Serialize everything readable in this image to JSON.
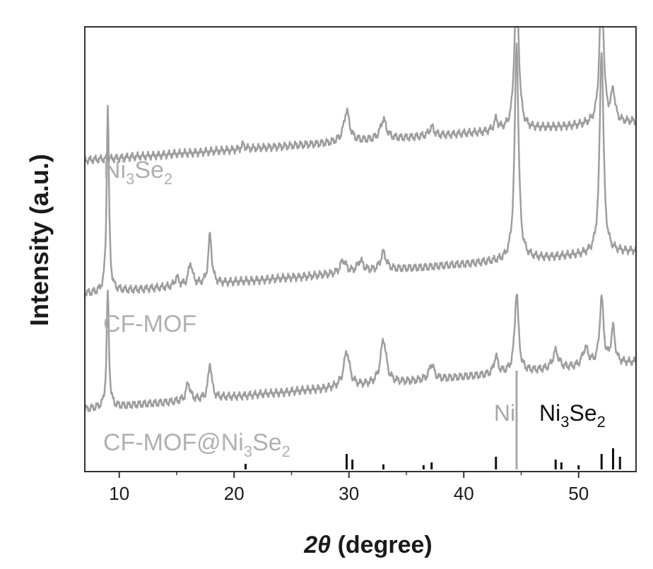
{
  "chart_data": {
    "type": "line",
    "title": "",
    "xlabel_prefix": "2θ",
    "xlabel_suffix": " (degree)",
    "ylabel": "Intensity (a.u.)",
    "xlim": [
      7,
      55
    ],
    "xticks": [
      10,
      20,
      30,
      40,
      50
    ],
    "xtick_labels": [
      "10",
      "20",
      "30",
      "40",
      "50"
    ],
    "y_ticks_shown": false,
    "series": [
      {
        "label_parts": [
          "Ni",
          "3",
          "Se",
          "2"
        ],
        "color": "#9e9e9e",
        "baseline": 0.7,
        "slope": 0.0018,
        "peaks": [
          {
            "x": 20.8,
            "h": 0.01,
            "w": 0.2
          },
          {
            "x": 29.8,
            "h": 0.07,
            "w": 0.3
          },
          {
            "x": 33.0,
            "h": 0.045,
            "w": 0.3
          },
          {
            "x": 37.2,
            "h": 0.02,
            "w": 0.25
          },
          {
            "x": 42.8,
            "h": 0.025,
            "w": 0.2
          },
          {
            "x": 44.6,
            "h": 0.38,
            "w": 0.2
          },
          {
            "x": 52.0,
            "h": 0.34,
            "w": 0.2
          },
          {
            "x": 53.0,
            "h": 0.07,
            "w": 0.2
          }
        ]
      },
      {
        "label_parts": [
          "CF-MOF"
        ],
        "color": "#9e9e9e",
        "baseline": 0.4,
        "slope": 0.002,
        "peaks": [
          {
            "x": 9.0,
            "h": 0.42,
            "w": 0.12
          },
          {
            "x": 15.0,
            "h": 0.02,
            "w": 0.2
          },
          {
            "x": 16.2,
            "h": 0.05,
            "w": 0.2
          },
          {
            "x": 17.9,
            "h": 0.11,
            "w": 0.18
          },
          {
            "x": 29.5,
            "h": 0.03,
            "w": 0.3
          },
          {
            "x": 31.0,
            "h": 0.025,
            "w": 0.3
          },
          {
            "x": 33.0,
            "h": 0.04,
            "w": 0.3
          },
          {
            "x": 44.6,
            "h": 0.49,
            "w": 0.2
          },
          {
            "x": 52.0,
            "h": 0.46,
            "w": 0.2
          }
        ]
      },
      {
        "label_parts": [
          "CF-MOF@Ni",
          "3",
          "Se",
          "2"
        ],
        "color": "#9e9e9e",
        "baseline": 0.14,
        "slope": 0.0022,
        "peaks": [
          {
            "x": 9.0,
            "h": 0.26,
            "w": 0.12
          },
          {
            "x": 16.0,
            "h": 0.04,
            "w": 0.2
          },
          {
            "x": 17.9,
            "h": 0.08,
            "w": 0.18
          },
          {
            "x": 29.8,
            "h": 0.08,
            "w": 0.3
          },
          {
            "x": 33.0,
            "h": 0.1,
            "w": 0.3
          },
          {
            "x": 37.2,
            "h": 0.035,
            "w": 0.25
          },
          {
            "x": 42.8,
            "h": 0.04,
            "w": 0.2
          },
          {
            "x": 44.6,
            "h": 0.18,
            "w": 0.2
          },
          {
            "x": 48.0,
            "h": 0.04,
            "w": 0.3
          },
          {
            "x": 50.6,
            "h": 0.04,
            "w": 0.3
          },
          {
            "x": 52.0,
            "h": 0.15,
            "w": 0.2
          },
          {
            "x": 53.0,
            "h": 0.08,
            "w": 0.2
          }
        ]
      }
    ],
    "reference_patterns": [
      {
        "name": "Ni",
        "color": "#a8a8a8",
        "lines": [
          {
            "x": 44.6,
            "h": 1.0
          }
        ]
      },
      {
        "name_parts": [
          "Ni",
          "3",
          "Se",
          "2"
        ],
        "color": "#111111",
        "lines": [
          {
            "x": 21.0,
            "h": 0.2
          },
          {
            "x": 29.8,
            "h": 0.55
          },
          {
            "x": 30.3,
            "h": 0.35
          },
          {
            "x": 33.0,
            "h": 0.18
          },
          {
            "x": 36.5,
            "h": 0.15
          },
          {
            "x": 37.2,
            "h": 0.25
          },
          {
            "x": 42.8,
            "h": 0.45
          },
          {
            "x": 48.0,
            "h": 0.35
          },
          {
            "x": 48.5,
            "h": 0.25
          },
          {
            "x": 50.0,
            "h": 0.15
          },
          {
            "x": 52.0,
            "h": 0.55
          },
          {
            "x": 53.0,
            "h": 0.75
          },
          {
            "x": 53.6,
            "h": 0.45
          }
        ]
      }
    ]
  }
}
